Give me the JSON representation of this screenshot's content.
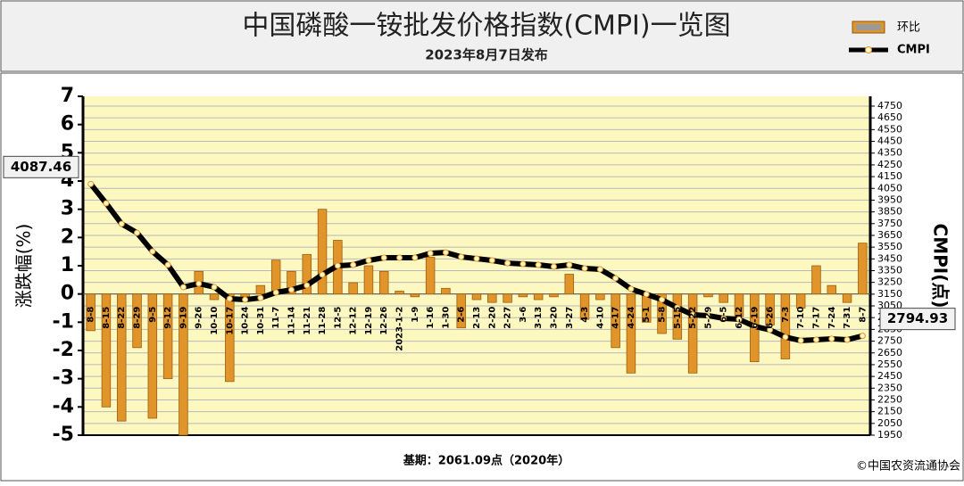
{
  "chart_data": {
    "type": "bar",
    "title": "中国磷酸一铵批发价格指数(CMPI)一览图",
    "subtitle": "2023年8月7日发布",
    "ylabel": "涨跌幅(%)",
    "y2label": "CMPI(点)",
    "footnote": "基期：2061.09点（2020年）",
    "source": "©中国农资流通协会",
    "categories": [
      "8-8",
      "8-15",
      "8-22",
      "8-29",
      "9-5",
      "9-12",
      "9-19",
      "9-26",
      "10-10",
      "10-17",
      "10-24",
      "10-31",
      "11-7",
      "11-14",
      "11-21",
      "11-28",
      "12-5",
      "12-12",
      "12-19",
      "12-26",
      "2023-1-2",
      "1-9",
      "1-16",
      "1-30",
      "2-6",
      "2-13",
      "2-20",
      "2-27",
      "3-6",
      "3-13",
      "3-20",
      "3-27",
      "4-3",
      "4-10",
      "4-17",
      "4-24",
      "5-1",
      "5-8",
      "5-15",
      "5-22",
      "5-29",
      "6-5",
      "6-12",
      "6-19",
      "6-26",
      "7-3",
      "7-10",
      "7-17",
      "7-24",
      "7-31",
      "8-7"
    ],
    "series": [
      {
        "name": "环比",
        "type": "bar",
        "color": "#e0942a",
        "values": [
          -1.3,
          -4.0,
          -4.5,
          -1.9,
          -4.4,
          -3.0,
          -5.0,
          0.8,
          -0.2,
          -3.1,
          -0.1,
          0.3,
          1.2,
          0.8,
          1.4,
          3.0,
          1.9,
          0.4,
          1.0,
          0.8,
          0.1,
          -0.1,
          1.3,
          0.2,
          -1.2,
          -0.2,
          -0.3,
          -0.3,
          -0.1,
          -0.2,
          -0.1,
          0.7,
          -0.9,
          -0.2,
          -1.9,
          -2.8,
          -1.0,
          -1.4,
          -1.6,
          -2.8,
          -0.1,
          -0.3,
          -0.8,
          -2.4,
          -1.1,
          -2.3,
          -0.5,
          1.0,
          0.3,
          -0.3,
          1.8
        ]
      },
      {
        "name": "CMPI",
        "type": "line",
        "axis": "y2",
        "color": "#000000",
        "values": [
          4087.46,
          3923,
          3748,
          3672,
          3513,
          3399,
          3210,
          3240,
          3210,
          3111,
          3103,
          3118,
          3164,
          3187,
          3225,
          3316,
          3392,
          3399,
          3437,
          3460,
          3460,
          3460,
          3498,
          3505,
          3467,
          3452,
          3437,
          3414,
          3407,
          3399,
          3384,
          3399,
          3369,
          3361,
          3285,
          3194,
          3149,
          3103,
          3035,
          2974,
          2967,
          2944,
          2936,
          2876,
          2846,
          2785,
          2755,
          2762,
          2770,
          2762,
          2794.93
        ]
      }
    ],
    "ylim": [
      -5,
      7
    ],
    "yticks": [
      -5,
      -4,
      -3,
      -2,
      -1,
      0,
      1,
      2,
      3,
      4,
      5,
      6,
      7
    ],
    "y2lim": [
      1950,
      4750
    ],
    "y2ticks": [
      1950,
      2050,
      2150,
      2250,
      2350,
      2450,
      2550,
      2650,
      2750,
      2850,
      2950,
      3050,
      3150,
      3250,
      3350,
      3450,
      3550,
      3650,
      3750,
      3850,
      3950,
      4050,
      4150,
      4250,
      4350,
      4450,
      4550,
      4650,
      4750
    ],
    "grid": true
  }
}
